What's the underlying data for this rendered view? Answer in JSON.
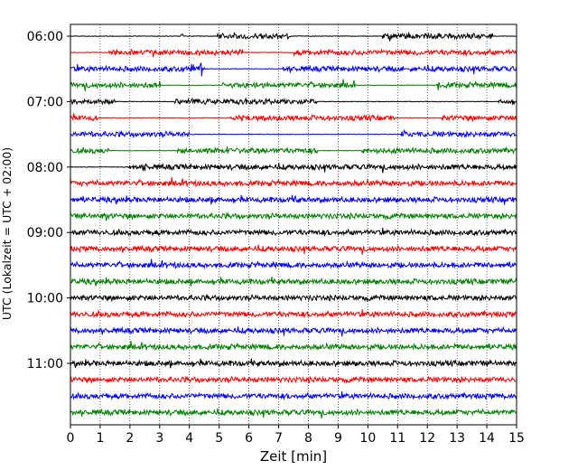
{
  "chart_data": {
    "type": "line",
    "title": "",
    "xlabel": "Zeit  [min]",
    "ylabel": "UTC (Lokalzeit = UTC + 02:00)",
    "xlim": [
      0,
      15
    ],
    "x_ticks": [
      0,
      1,
      2,
      3,
      4,
      5,
      6,
      7,
      8,
      9,
      10,
      11,
      12,
      13,
      14,
      15
    ],
    "x_grid": true,
    "y_ticks": [
      "06:00",
      "07:00",
      "08:00",
      "09:00",
      "10:00",
      "11:00"
    ],
    "trace_start_utc": "06:00",
    "trace_interval_min": 15,
    "trace_count": 24,
    "trace_colors": [
      "#000000",
      "#ff0000",
      "#0000ff",
      "#008000"
    ]
  }
}
